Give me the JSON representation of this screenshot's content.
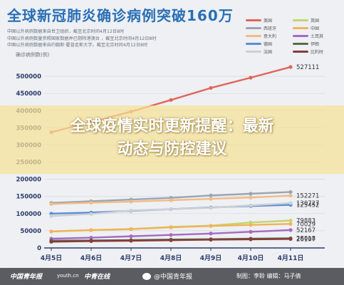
{
  "header": {
    "title": "全球新冠肺炎确诊病例突破160万",
    "subtitle_lines": [
      "中国以外病例数据来自世卫组织，截至北京时间4月12日8时",
      "中国以外病例数量参照国家数据并已剔除港澳台 ，截至北京时间4月12日8时",
      "中国以外病例数据来自约翰斯·霍普金斯大学，截至北京时间4月12日8时"
    ],
    "ylabel": "确诊病例数(例)"
  },
  "headline": {
    "line1": "全球疫情实时更新提醒：最新",
    "line2": "动态与防控建议"
  },
  "footer": {
    "logo1": "中国青年报",
    "logo2": "youth.cn",
    "logo3": "中青在线",
    "center": "@中国青年报",
    "credits": "制图：李聆  编辑：马子倩"
  },
  "colors": {
    "title": "#2a6fb5",
    "axis_text": "#2d3a6b",
    "grid": "#d5d8de",
    "overlay": "#f6e296",
    "footer_bg": "#5a5c61"
  },
  "chart_data": {
    "type": "line",
    "title": "全球新冠肺炎确诊病例突破160万",
    "ylabel": "确诊病例数(例)",
    "xlabel": "",
    "categories": [
      "4月5日",
      "4月6日",
      "4月7日",
      "4月8日",
      "4月9日",
      "4月10日",
      "4月11日"
    ],
    "yticks": [
      0,
      50000,
      100000,
      150000,
      200000,
      250000,
      300000,
      350000,
      400000,
      450000,
      500000
    ],
    "ytick_labels": [
      "0",
      "50000",
      "100000",
      "150000",
      "200000",
      "250000",
      "300000",
      "350000",
      "400000",
      "450000",
      "500000"
    ],
    "ylim": [
      0,
      550000
    ],
    "grid": true,
    "legend_position": "top-right",
    "series": [
      {
        "name": "美国",
        "color": "#e0655a",
        "values": [
          337000,
          367000,
          397000,
          431000,
          466000,
          496000,
          527111
        ],
        "end_label": "527111"
      },
      {
        "name": "英国",
        "color": "#c2d66a",
        "values": [
          48000,
          52000,
          55000,
          61000,
          65000,
          74000,
          79883
        ],
        "end_label": "79883"
      },
      {
        "name": "西班牙",
        "color": "#9aa5b3",
        "values": [
          131000,
          136000,
          141000,
          146000,
          153000,
          158000,
          163027
        ],
        "end_label": ""
      },
      {
        "name": "中国",
        "color": "#f3b25a",
        "values": [
          48000,
          52000,
          55000,
          60000,
          64000,
          67000,
          70029
        ],
        "end_label": "70029"
      },
      {
        "name": "意大利",
        "color": "#f0bc84",
        "values": [
          128000,
          132000,
          135000,
          139000,
          143000,
          147000,
          152271
        ],
        "end_label": "152271"
      },
      {
        "name": "土耳其",
        "color": "#a56ac2",
        "values": [
          27000,
          30000,
          34000,
          38000,
          42000,
          47000,
          52167
        ],
        "end_label": "52167"
      },
      {
        "name": "德国",
        "color": "#5b8ed6",
        "values": [
          100000,
          103000,
          108000,
          113000,
          118000,
          122000,
          125452
        ],
        "end_label": "125452"
      },
      {
        "name": "伊朗",
        "color": "#586b4e",
        "values": [
          21000,
          22000,
          23000,
          24500,
          25500,
          27000,
          28018
        ],
        "end_label": "28018"
      },
      {
        "name": "法国",
        "color": "#cccfd6",
        "values": [
          93000,
          99000,
          109000,
          113000,
          117000,
          124000,
          130727
        ],
        "end_label": "130727"
      },
      {
        "name": "比利时",
        "color": "#8a3b3b",
        "values": [
          18000,
          20000,
          21000,
          22500,
          24000,
          25000,
          26107
        ],
        "end_label": "26107"
      }
    ]
  }
}
